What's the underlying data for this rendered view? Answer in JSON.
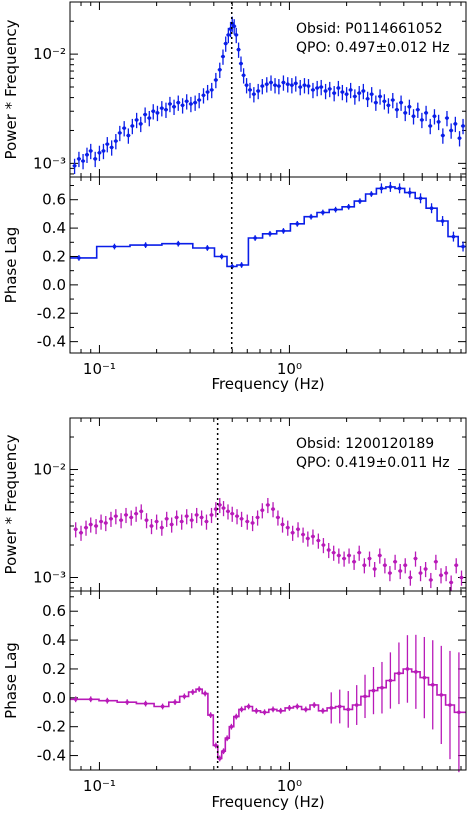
{
  "chart_data": [
    {
      "type": "scatter",
      "name": "top-figure",
      "color": "#0a1ee8",
      "annotation": {
        "obsid": "Obsid: P0114661052",
        "qpo": "QPO: 0.497±0.012 Hz"
      },
      "qpo_frequency": 0.497,
      "xlabel": "Frequency (Hz)",
      "xscale": "log",
      "xlim": [
        0.07,
        8.5
      ],
      "xticks": [
        {
          "v": 0.1,
          "label": "10⁻¹"
        },
        {
          "v": 1,
          "label": "10⁰"
        }
      ],
      "power": {
        "ylabel": "Power * Frequency",
        "yscale": "log",
        "ylim": [
          0.00075,
          0.03
        ],
        "yticks": [
          {
            "v": 0.001,
            "label": "10⁻³"
          },
          {
            "v": 0.01,
            "label": "10⁻²"
          }
        ],
        "x": [
          0.074,
          0.078,
          0.082,
          0.086,
          0.09,
          0.095,
          0.1,
          0.105,
          0.11,
          0.116,
          0.122,
          0.128,
          0.135,
          0.142,
          0.149,
          0.157,
          0.165,
          0.174,
          0.183,
          0.192,
          0.202,
          0.213,
          0.224,
          0.235,
          0.247,
          0.26,
          0.274,
          0.288,
          0.303,
          0.319,
          0.335,
          0.353,
          0.371,
          0.39,
          0.41,
          0.43,
          0.447,
          0.462,
          0.477,
          0.49,
          0.5,
          0.512,
          0.525,
          0.54,
          0.556,
          0.574,
          0.595,
          0.62,
          0.65,
          0.685,
          0.72,
          0.76,
          0.8,
          0.84,
          0.88,
          0.93,
          0.98,
          1.03,
          1.08,
          1.14,
          1.2,
          1.26,
          1.33,
          1.4,
          1.47,
          1.55,
          1.63,
          1.72,
          1.81,
          1.9,
          2.0,
          2.1,
          2.21,
          2.33,
          2.45,
          2.58,
          2.71,
          2.85,
          3.0,
          3.16,
          3.32,
          3.5,
          3.68,
          3.87,
          4.07,
          4.28,
          4.5,
          4.74,
          4.98,
          5.24,
          5.51,
          5.8,
          6.1,
          6.42,
          6.75,
          7.1,
          7.47,
          7.86,
          8.2
        ],
        "y": [
          0.00095,
          0.0011,
          0.00105,
          0.0012,
          0.0013,
          0.0011,
          0.00125,
          0.0013,
          0.0015,
          0.0014,
          0.0016,
          0.0019,
          0.0021,
          0.0018,
          0.0022,
          0.0025,
          0.0023,
          0.0028,
          0.0026,
          0.003,
          0.0029,
          0.0032,
          0.0031,
          0.0035,
          0.0033,
          0.0036,
          0.0034,
          0.0037,
          0.0035,
          0.0036,
          0.0038,
          0.0042,
          0.0045,
          0.0047,
          0.0058,
          0.0072,
          0.0095,
          0.0125,
          0.015,
          0.017,
          0.019,
          0.018,
          0.015,
          0.011,
          0.0082,
          0.0064,
          0.0052,
          0.0047,
          0.0043,
          0.0046,
          0.0051,
          0.0053,
          0.0055,
          0.0052,
          0.0051,
          0.0055,
          0.0053,
          0.0052,
          0.0054,
          0.005,
          0.0052,
          0.0051,
          0.0047,
          0.0049,
          0.005,
          0.0046,
          0.0048,
          0.0044,
          0.0049,
          0.0045,
          0.0043,
          0.0047,
          0.0041,
          0.0044,
          0.0046,
          0.0039,
          0.0043,
          0.0036,
          0.0041,
          0.0037,
          0.0034,
          0.0038,
          0.0031,
          0.0036,
          0.0029,
          0.0033,
          0.0027,
          0.0031,
          0.0025,
          0.0029,
          0.0022,
          0.0027,
          0.0024,
          0.0018,
          0.0026,
          0.002,
          0.0023,
          0.0017,
          0.0022
        ]
      },
      "lag": {
        "ylabel": "Phase Lag",
        "ylim": [
          -0.48,
          0.76
        ],
        "yticks": [
          -0.4,
          -0.2,
          0.0,
          0.2,
          0.4,
          0.6
        ],
        "x": [
          0.078,
          0.12,
          0.175,
          0.26,
          0.37,
          0.44,
          0.5,
          0.56,
          0.66,
          0.79,
          0.93,
          1.1,
          1.3,
          1.5,
          1.75,
          2.05,
          2.35,
          2.7,
          3.05,
          3.4,
          3.8,
          4.3,
          4.9,
          5.6,
          6.4,
          7.3,
          8.2
        ],
        "y": [
          0.19,
          0.27,
          0.28,
          0.29,
          0.26,
          0.2,
          0.13,
          0.14,
          0.33,
          0.36,
          0.38,
          0.43,
          0.48,
          0.51,
          0.53,
          0.55,
          0.59,
          0.64,
          0.68,
          0.69,
          0.68,
          0.65,
          0.61,
          0.54,
          0.45,
          0.34,
          0.27
        ]
      }
    },
    {
      "type": "scatter",
      "name": "bottom-figure",
      "color": "#b81ab8",
      "annotation": {
        "obsid": "Obsid: 1200120189",
        "qpo": "QPO: 0.419±0.011 Hz"
      },
      "qpo_frequency": 0.419,
      "xlabel": "Frequency (Hz)",
      "xscale": "log",
      "xlim": [
        0.07,
        8.5
      ],
      "xticks": [
        {
          "v": 0.1,
          "label": "10⁻¹"
        },
        {
          "v": 1,
          "label": "10⁰"
        }
      ],
      "power": {
        "ylabel": "Power * Frequency",
        "yscale": "log",
        "ylim": [
          0.00075,
          0.03
        ],
        "yticks": [
          {
            "v": 0.001,
            "label": "10⁻³"
          },
          {
            "v": 0.01,
            "label": "10⁻²"
          }
        ],
        "x": [
          0.075,
          0.08,
          0.085,
          0.09,
          0.096,
          0.102,
          0.108,
          0.115,
          0.122,
          0.13,
          0.138,
          0.147,
          0.156,
          0.166,
          0.177,
          0.188,
          0.2,
          0.213,
          0.226,
          0.24,
          0.255,
          0.271,
          0.288,
          0.306,
          0.325,
          0.345,
          0.366,
          0.389,
          0.41,
          0.43,
          0.45,
          0.475,
          0.5,
          0.53,
          0.56,
          0.6,
          0.64,
          0.68,
          0.72,
          0.77,
          0.82,
          0.87,
          0.92,
          0.98,
          1.04,
          1.11,
          1.18,
          1.25,
          1.33,
          1.42,
          1.51,
          1.61,
          1.71,
          1.82,
          1.94,
          2.06,
          2.19,
          2.33,
          2.48,
          2.64,
          2.81,
          2.99,
          3.18,
          3.38,
          3.6,
          3.83,
          4.07,
          4.33,
          4.61,
          4.9,
          5.21,
          5.55,
          5.9,
          6.28,
          6.68,
          7.1,
          7.55,
          8.05
        ],
        "y": [
          0.0028,
          0.0026,
          0.0029,
          0.0031,
          0.003,
          0.0033,
          0.0032,
          0.0035,
          0.0037,
          0.0034,
          0.0038,
          0.0036,
          0.0039,
          0.0041,
          0.0034,
          0.003,
          0.0033,
          0.0029,
          0.0035,
          0.0031,
          0.0036,
          0.0033,
          0.0037,
          0.0034,
          0.0038,
          0.0036,
          0.0033,
          0.0038,
          0.0043,
          0.0047,
          0.0044,
          0.0041,
          0.0039,
          0.0037,
          0.0035,
          0.0033,
          0.0032,
          0.0036,
          0.0042,
          0.0047,
          0.0043,
          0.0036,
          0.0031,
          0.0029,
          0.0026,
          0.0028,
          0.0025,
          0.0023,
          0.0024,
          0.0022,
          0.002,
          0.0018,
          0.0017,
          0.0016,
          0.0015,
          0.0016,
          0.0014,
          0.0017,
          0.0013,
          0.0015,
          0.0012,
          0.0016,
          0.0013,
          0.0011,
          0.0014,
          0.00115,
          0.0013,
          0.001,
          0.0015,
          0.0011,
          0.0012,
          0.00095,
          0.0014,
          0.00105,
          0.0011,
          0.0009,
          0.0013,
          0.001
        ]
      },
      "lag": {
        "ylabel": "Phase Lag",
        "ylim": [
          -0.5,
          0.74
        ],
        "yticks": [
          -0.4,
          -0.2,
          0.0,
          0.2,
          0.4,
          0.6
        ],
        "x": [
          0.075,
          0.09,
          0.11,
          0.14,
          0.175,
          0.215,
          0.25,
          0.28,
          0.31,
          0.335,
          0.36,
          0.385,
          0.41,
          0.43,
          0.45,
          0.47,
          0.495,
          0.525,
          0.56,
          0.61,
          0.67,
          0.74,
          0.82,
          0.9,
          1.0,
          1.1,
          1.22,
          1.35,
          1.5,
          1.66,
          1.84,
          2.04,
          2.26,
          2.5,
          2.77,
          3.07,
          3.4,
          3.77,
          4.18,
          4.63,
          5.13,
          5.68,
          6.3,
          7.0,
          7.8
        ],
        "y": [
          -0.01,
          -0.01,
          -0.02,
          -0.03,
          -0.04,
          -0.06,
          -0.03,
          0.01,
          0.04,
          0.06,
          0.03,
          -0.12,
          -0.33,
          -0.42,
          -0.37,
          -0.28,
          -0.2,
          -0.13,
          -0.08,
          -0.06,
          -0.09,
          -0.1,
          -0.08,
          -0.09,
          -0.07,
          -0.06,
          -0.08,
          -0.05,
          -0.09,
          -0.07,
          -0.06,
          -0.08,
          -0.05,
          0.01,
          0.05,
          0.07,
          0.12,
          0.17,
          0.2,
          0.18,
          0.14,
          0.09,
          0.02,
          -0.05,
          -0.1
        ]
      }
    }
  ]
}
